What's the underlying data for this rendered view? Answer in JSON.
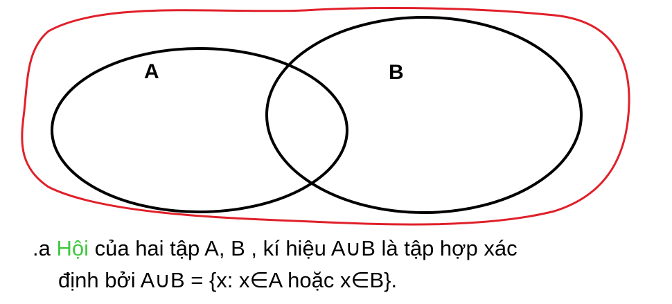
{
  "diagram": {
    "set_a_label": "A",
    "set_b_label": "B",
    "colors": {
      "union_outline": "#e0202a",
      "set_outline": "#000000",
      "highlight_word": "#3fc93f"
    }
  },
  "caption": {
    "line1_prefix": ".a ",
    "line1_highlight": "Hội",
    "line1_rest": " của hai tập A, B , kí hiệu A∪B là tập hợp xác",
    "line2": "định bởi A∪B = {x: x∈A hoặc x∈B}."
  }
}
